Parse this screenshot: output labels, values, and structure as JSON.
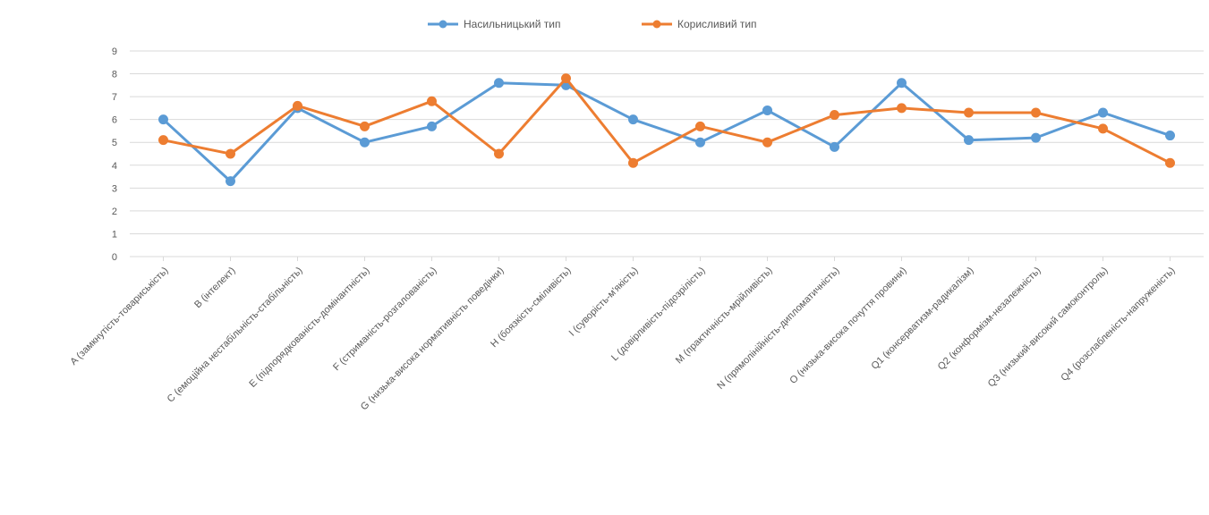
{
  "chart_data": {
    "type": "line",
    "title": "",
    "xlabel": "",
    "ylabel": "",
    "ylim": [
      0,
      9
    ],
    "yticks": [
      0,
      1,
      2,
      3,
      4,
      5,
      6,
      7,
      8,
      9
    ],
    "grid": "horizontal",
    "legend_position": "top",
    "categories": [
      "A (замкнутість-товариськість)",
      "B (інтелект)",
      "C (емоційна нестабільність-стабільність)",
      "E (підпорядкованість-домінантність)",
      "F (стриманість-розгалованість)",
      "G (низька-висока нормативність поведінки)",
      "H (боязкість-сміливість)",
      "I (суворість-м'якість)",
      "L (довірливість-підозрілість)",
      "M (практичність-мрійливість)",
      "N (прямолінійність-дипломатичність)",
      "O (низька-висока почуття провини)",
      "Q1 (консерватизм-радикалізм)",
      "Q2 (конформізм-незалежність)",
      "Q3 (низький-високий самоконтроль)",
      "Q4 (розслабленість-напруженість)"
    ],
    "series": [
      {
        "name": "Насильницький тип",
        "color": "#5B9BD5",
        "values": [
          6.0,
          3.3,
          6.5,
          5.0,
          5.7,
          7.6,
          7.5,
          6.0,
          5.0,
          6.4,
          4.8,
          7.6,
          5.1,
          5.2,
          6.3,
          5.3
        ]
      },
      {
        "name": "Корисливий тип",
        "color": "#ED7D31",
        "values": [
          5.1,
          4.5,
          6.6,
          5.7,
          6.8,
          4.5,
          7.8,
          4.1,
          5.7,
          5.0,
          6.2,
          6.5,
          6.3,
          6.3,
          5.6,
          4.1
        ]
      }
    ]
  }
}
